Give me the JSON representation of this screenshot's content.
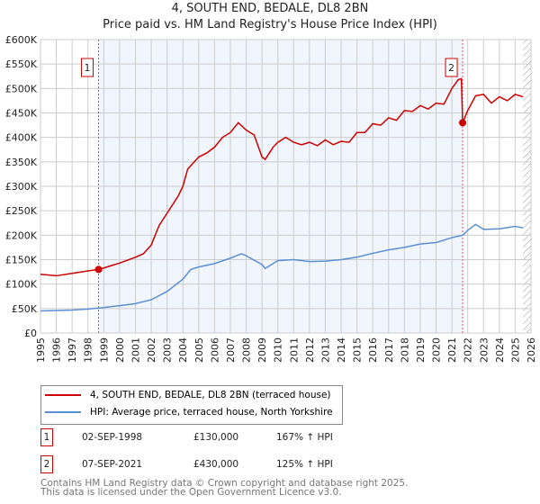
{
  "chart_data": {
    "type": "line",
    "title": "4, SOUTH END, BEDALE, DL8 2BN",
    "subtitle": "Price paid vs. HM Land Registry's House Price Index (HPI)",
    "xlim": [
      1995,
      2026
    ],
    "ylim": [
      0,
      600000
    ],
    "x_ticks": [
      "1995",
      "1996",
      "1997",
      "1998",
      "1999",
      "2000",
      "2001",
      "2002",
      "2003",
      "2004",
      "2005",
      "2006",
      "2007",
      "2008",
      "2009",
      "2010",
      "2011",
      "2012",
      "2013",
      "2014",
      "2015",
      "2016",
      "2017",
      "2018",
      "2019",
      "2020",
      "2021",
      "2022",
      "2023",
      "2024",
      "2025",
      "2026"
    ],
    "y_ticks": [
      {
        "v": 0,
        "l": "£0"
      },
      {
        "v": 50000,
        "l": "£50K"
      },
      {
        "v": 100000,
        "l": "£100K"
      },
      {
        "v": 150000,
        "l": "£150K"
      },
      {
        "v": 200000,
        "l": "£200K"
      },
      {
        "v": 250000,
        "l": "£250K"
      },
      {
        "v": 300000,
        "l": "£300K"
      },
      {
        "v": 350000,
        "l": "£350K"
      },
      {
        "v": 400000,
        "l": "£400K"
      },
      {
        "v": 450000,
        "l": "£450K"
      },
      {
        "v": 500000,
        "l": "£500K"
      },
      {
        "v": 550000,
        "l": "£550K"
      },
      {
        "v": 600000,
        "l": "£600K"
      }
    ],
    "grid": true,
    "shaded_range": [
      1998.67,
      2021.68
    ],
    "forecast_hatch_from": 2025.5,
    "series": [
      {
        "name": "4, SOUTH END, BEDALE, DL8 2BN (terraced house)",
        "color": "#cc0000",
        "x": [
          1995,
          1996,
          1997,
          1998,
          1998.67,
          1999,
          2000,
          2001,
          2001.5,
          2002,
          2002.5,
          2003,
          2003.7,
          2004,
          2004.3,
          2005,
          2005.5,
          2006,
          2006.5,
          2007,
          2007.5,
          2008,
          2008.5,
          2009,
          2009.2,
          2009.7,
          2010,
          2010.5,
          2011,
          2011.5,
          2012,
          2012.5,
          2013,
          2013.5,
          2014,
          2014.5,
          2015,
          2015.5,
          2016,
          2016.5,
          2017,
          2017.5,
          2018,
          2018.5,
          2019,
          2019.5,
          2020,
          2020.5,
          2021,
          2021.4,
          2021.6,
          2021.68,
          2022,
          2022.5,
          2023,
          2023.5,
          2024,
          2024.5,
          2025,
          2025.5
        ],
        "y": [
          120000,
          117000,
          122000,
          127000,
          130000,
          133000,
          143000,
          155000,
          162000,
          180000,
          220000,
          245000,
          280000,
          300000,
          335000,
          360000,
          368000,
          380000,
          400000,
          410000,
          430000,
          415000,
          405000,
          360000,
          355000,
          380000,
          390000,
          400000,
          390000,
          385000,
          390000,
          383000,
          395000,
          385000,
          392000,
          390000,
          410000,
          410000,
          428000,
          425000,
          440000,
          435000,
          455000,
          453000,
          465000,
          458000,
          470000,
          468000,
          500000,
          518000,
          520000,
          430000,
          455000,
          485000,
          488000,
          470000,
          483000,
          475000,
          488000,
          483000
        ]
      },
      {
        "name": "HPI: Average price, terraced house, North Yorkshire",
        "color": "#5b8fd4",
        "x": [
          1995,
          1996,
          1997,
          1998,
          1999,
          2000,
          2001,
          2002,
          2003,
          2004,
          2004.5,
          2005,
          2006,
          2007,
          2007.7,
          2008,
          2009,
          2009.2,
          2010,
          2011,
          2012,
          2013,
          2014,
          2015,
          2016,
          2017,
          2018,
          2019,
          2020,
          2021,
          2021.7,
          2022,
          2022.5,
          2023,
          2024,
          2025,
          2025.5
        ],
        "y": [
          45000,
          46000,
          47000,
          49000,
          52000,
          56000,
          60000,
          68000,
          85000,
          110000,
          130000,
          135000,
          142000,
          153000,
          162000,
          158000,
          140000,
          132000,
          148000,
          150000,
          146000,
          147000,
          150000,
          155000,
          163000,
          170000,
          175000,
          182000,
          185000,
          195000,
          200000,
          210000,
          222000,
          212000,
          213000,
          218000,
          215000
        ]
      }
    ],
    "sales": [
      {
        "id": "1",
        "x": 1998.67,
        "y": 130000,
        "date": "02-SEP-1998",
        "price": "£130,000",
        "hpi": "167% ↑ HPI"
      },
      {
        "id": "2",
        "x": 2021.68,
        "y": 430000,
        "date": "07-SEP-2021",
        "price": "£430,000",
        "hpi": "125% ↑ HPI"
      }
    ]
  },
  "footer": {
    "line1": "Contains HM Land Registry data © Crown copyright and database right 2025.",
    "line2": "This data is licensed under the Open Government Licence v3.0."
  }
}
